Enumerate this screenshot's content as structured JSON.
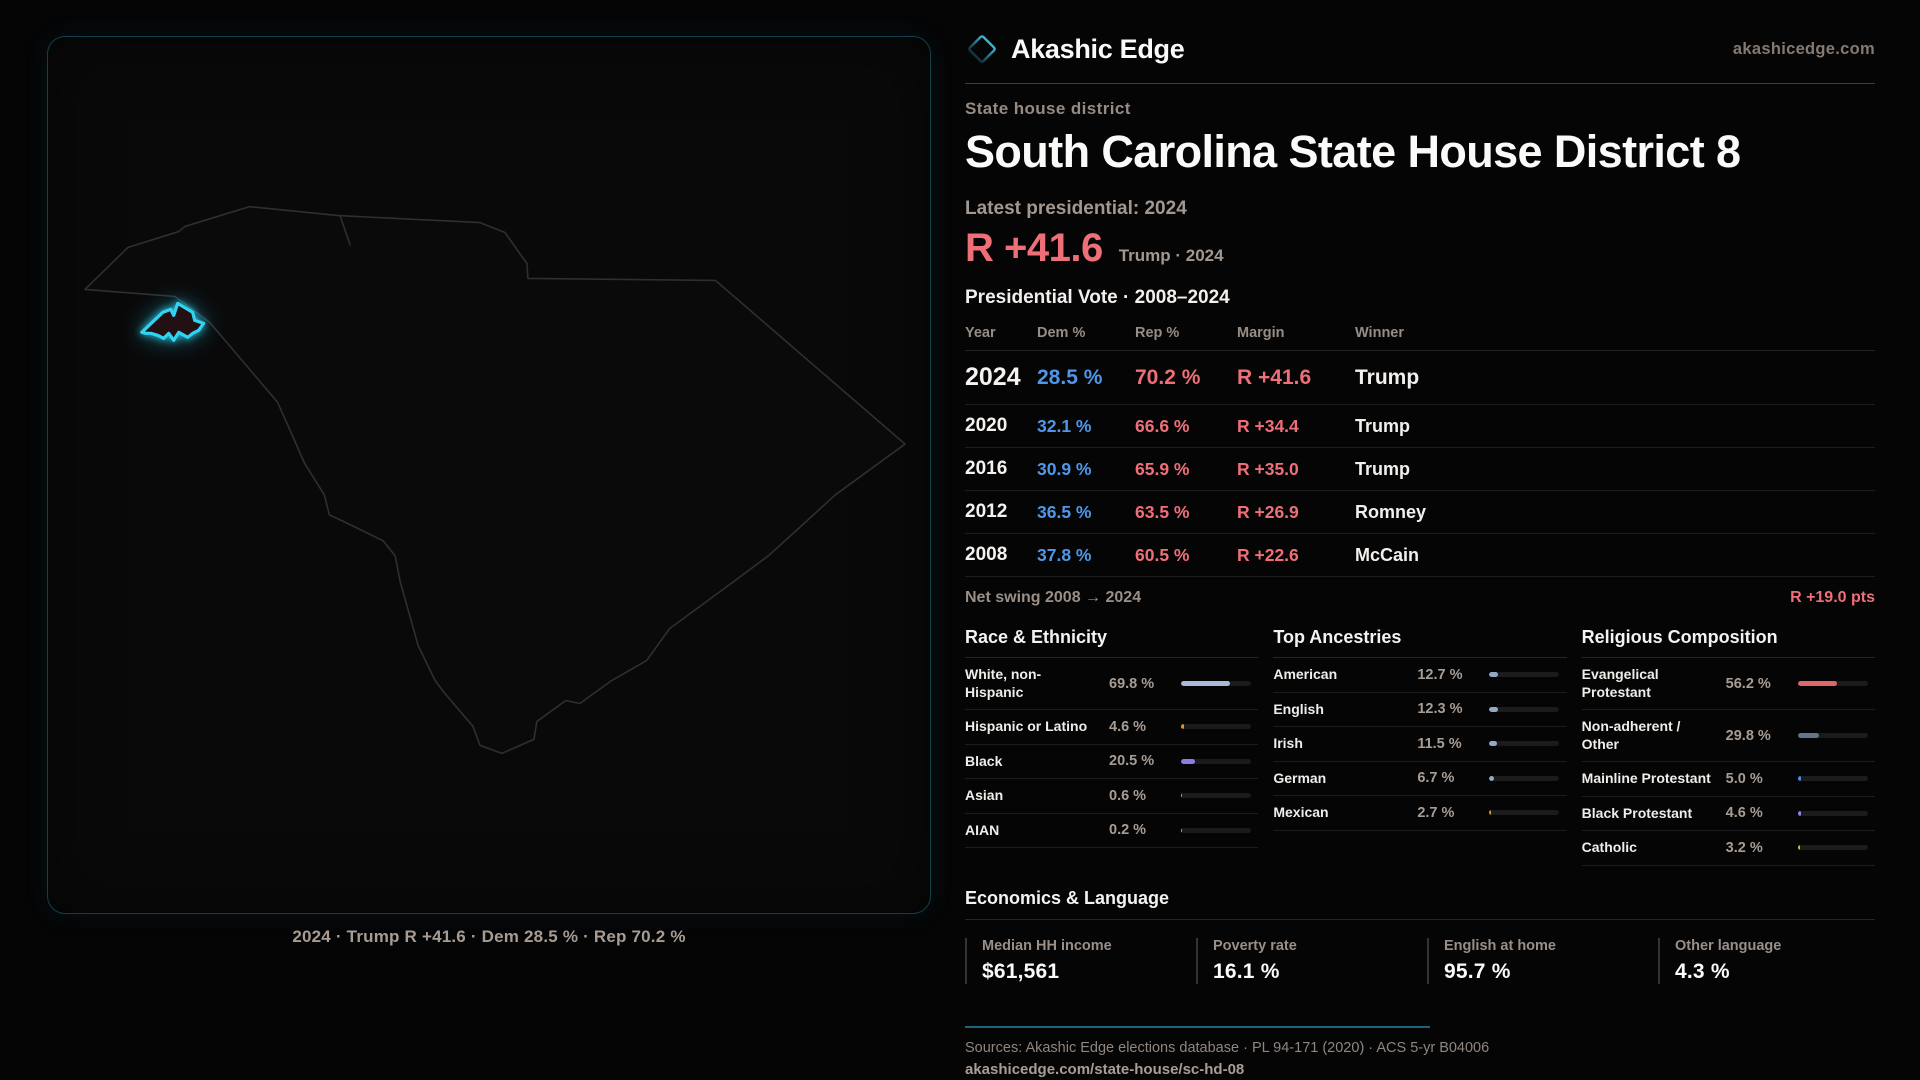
{
  "brand": {
    "name": "Akashic Edge",
    "site": "akashicedge.com",
    "logo_icon": "diamond-outline"
  },
  "profile": {
    "eyebrow": "State house district",
    "title": "South Carolina State House District 8",
    "latest_label": "Latest presidential: 2024",
    "hero_margin": "R +41.6",
    "hero_context": "Trump · 2024"
  },
  "vote_table": {
    "title": "Presidential Vote · 2008–2024",
    "columns": [
      "Year",
      "Dem %",
      "Rep %",
      "Margin",
      "Winner"
    ],
    "rows": [
      {
        "year": "2024",
        "dem": "28.5 %",
        "rep": "70.2 %",
        "margin": "R +41.6",
        "winner": "Trump"
      },
      {
        "year": "2020",
        "dem": "32.1 %",
        "rep": "66.6 %",
        "margin": "R +34.4",
        "winner": "Trump"
      },
      {
        "year": "2016",
        "dem": "30.9 %",
        "rep": "65.9 %",
        "margin": "R +35.0",
        "winner": "Trump"
      },
      {
        "year": "2012",
        "dem": "36.5 %",
        "rep": "63.5 %",
        "margin": "R +26.9",
        "winner": "Romney"
      },
      {
        "year": "2008",
        "dem": "37.8 %",
        "rep": "60.5 %",
        "margin": "R +22.6",
        "winner": "McCain"
      }
    ],
    "net_swing_label": "Net swing 2008 → 2024",
    "net_swing_value": "R +19.0 pts"
  },
  "demographics": {
    "race": {
      "title": "Race & Ethnicity",
      "rows": [
        {
          "label": "White, non-Hispanic",
          "value": "69.8 %",
          "pct": 69.8,
          "color": "#a9bad8"
        },
        {
          "label": "Hispanic or Latino",
          "value": "4.6 %",
          "pct": 4.6,
          "color": "#e2962f"
        },
        {
          "label": "Black",
          "value": "20.5 %",
          "pct": 20.5,
          "color": "#8c7ce4"
        },
        {
          "label": "Asian",
          "value": "0.6 %",
          "pct": 0.6,
          "color": "#9aa7b8"
        },
        {
          "label": "AIAN",
          "value": "0.2 %",
          "pct": 0.2,
          "color": "#9aa7b8"
        }
      ]
    },
    "ancestries": {
      "title": "Top Ancestries",
      "rows": [
        {
          "label": "American",
          "value": "12.7 %",
          "pct": 12.7,
          "color": "#93a9c8"
        },
        {
          "label": "English",
          "value": "12.3 %",
          "pct": 12.3,
          "color": "#93a9c8"
        },
        {
          "label": "Irish",
          "value": "11.5 %",
          "pct": 11.5,
          "color": "#93a9c8"
        },
        {
          "label": "German",
          "value": "6.7 %",
          "pct": 6.7,
          "color": "#93a9c8"
        },
        {
          "label": "Mexican",
          "value": "2.7 %",
          "pct": 2.7,
          "color": "#e2962f"
        }
      ]
    },
    "religion": {
      "title": "Religious Composition",
      "rows": [
        {
          "label": "Evangelical Protestant",
          "value": "56.2 %",
          "pct": 56.2,
          "color": "#e0666c"
        },
        {
          "label": "Non-adherent / Other",
          "value": "29.8 %",
          "pct": 29.8,
          "color": "#64748a"
        },
        {
          "label": "Mainline Protestant",
          "value": "5.0 %",
          "pct": 5.0,
          "color": "#4a8ee8"
        },
        {
          "label": "Black Protestant",
          "value": "4.6 %",
          "pct": 4.6,
          "color": "#9a7fe8"
        },
        {
          "label": "Catholic",
          "value": "3.2 %",
          "pct": 3.2,
          "color": "#e3b33c"
        }
      ]
    }
  },
  "economics": {
    "title": "Economics & Language",
    "stats": [
      {
        "label": "Median HH income",
        "value": "$61,561"
      },
      {
        "label": "Poverty rate",
        "value": "16.1 %"
      },
      {
        "label": "English at home",
        "value": "95.7 %"
      },
      {
        "label": "Other language",
        "value": "4.3 %"
      }
    ]
  },
  "map": {
    "region": "South Carolina",
    "highlight": "State House District 8",
    "caption": "2024 · Trump R +41.6 · Dem 28.5 % · Rep 70.2 %",
    "accent_color": "#2fd4f2"
  },
  "footer": {
    "sources": "Sources: Akashic Edge elections database · PL 94-171 (2020) · ACS 5-yr B04006",
    "permalink": "akashicedge.com/state-house/sc-hd-08"
  },
  "colors": {
    "dem_blue": "#4e97ea",
    "rep_red": "#ee6f77",
    "accent_teal": "#2fd4f2"
  },
  "chart_data": [
    {
      "type": "table",
      "title": "Presidential Vote · 2008–2024",
      "columns": [
        "Year",
        "Dem %",
        "Rep %",
        "Margin",
        "Winner"
      ],
      "rows": [
        [
          2024,
          28.5,
          70.2,
          "R +41.6",
          "Trump"
        ],
        [
          2020,
          32.1,
          66.6,
          "R +34.4",
          "Trump"
        ],
        [
          2016,
          30.9,
          65.9,
          "R +35.0",
          "Trump"
        ],
        [
          2012,
          36.5,
          63.5,
          "R +26.9",
          "Romney"
        ],
        [
          2008,
          37.8,
          60.5,
          "R +22.6",
          "McCain"
        ]
      ],
      "annotations": [
        "Net swing 2008 → 2024: R +19.0 pts"
      ]
    },
    {
      "type": "bar",
      "title": "Race & Ethnicity",
      "categories": [
        "White, non-Hispanic",
        "Hispanic or Latino",
        "Black",
        "Asian",
        "AIAN"
      ],
      "values": [
        69.8,
        4.6,
        20.5,
        0.6,
        0.2
      ],
      "xlabel": "",
      "ylabel": "",
      "unit": "%",
      "xlim": [
        0,
        100
      ],
      "orientation": "horizontal"
    },
    {
      "type": "bar",
      "title": "Top Ancestries",
      "categories": [
        "American",
        "English",
        "Irish",
        "German",
        "Mexican"
      ],
      "values": [
        12.7,
        12.3,
        11.5,
        6.7,
        2.7
      ],
      "xlabel": "",
      "ylabel": "",
      "unit": "%",
      "xlim": [
        0,
        100
      ],
      "orientation": "horizontal"
    },
    {
      "type": "bar",
      "title": "Religious Composition",
      "categories": [
        "Evangelical Protestant",
        "Non-adherent / Other",
        "Mainline Protestant",
        "Black Protestant",
        "Catholic"
      ],
      "values": [
        56.2,
        29.8,
        5.0,
        4.6,
        3.2
      ],
      "xlabel": "",
      "ylabel": "",
      "unit": "%",
      "xlim": [
        0,
        100
      ],
      "orientation": "horizontal"
    }
  ]
}
